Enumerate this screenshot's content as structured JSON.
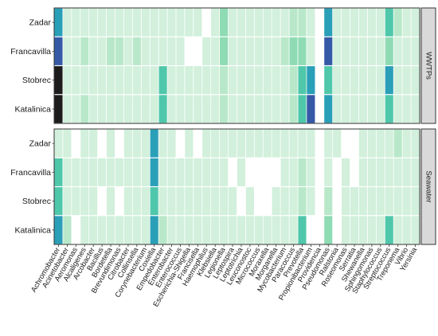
{
  "chart_data": {
    "type": "heatmap",
    "title": "",
    "xlabel": "",
    "ylabel": "",
    "color_scale": {
      "low": "#e8f7ec",
      "stops": [
        "#e8f7ec",
        "#d2f0dc",
        "#b8e8c9",
        "#8fdbb4",
        "#4fc7aa",
        "#2a9fb8",
        "#3559a6",
        "#1c1c1c"
      ],
      "missing": "#ffffff"
    },
    "genera": [
      "Achromobacter",
      "Acinetobacter",
      "Aeromonas",
      "Alcaligenes",
      "Arcobacter",
      "Bacillus",
      "Bordetella",
      "Brevundimonas",
      "Citrobacter",
      "Collinsella",
      "Corynebacterium",
      "Coxiella",
      "Empedobacter",
      "Enterobacter",
      "Enterococcus",
      "Escherichia-Shigella",
      "Francisella",
      "Haemophilus",
      "Klebsiella",
      "Legionella",
      "Leptospira",
      "Leptotrichia",
      "Leuconostoc",
      "Micrococcus",
      "Moraxella",
      "Morganella",
      "Mycobacterium",
      "Paracoccus",
      "Prevotella",
      "Propionibacterium",
      "Providencia",
      "Pseudomonas",
      "Ralstonia",
      "Roseomonas",
      "Serratia",
      "Shewanella",
      "Sphingomonas",
      "Staphylococcus",
      "Streptococcus",
      "Treponema",
      "Vibrio",
      "Yersinia"
    ],
    "panels": [
      {
        "strip": "WWTPs",
        "rows": [
          {
            "site": "Zadar",
            "values": [
              5,
              1,
              1,
              1,
              1,
              1,
              1,
              1,
              1,
              1,
              1,
              1,
              1,
              1,
              1,
              1,
              1,
              0,
              1,
              3,
              1,
              1,
              1,
              1,
              1,
              1,
              1,
              2,
              2,
              1,
              0,
              5,
              1,
              1,
              1,
              1,
              1,
              1,
              4,
              2,
              1,
              1
            ]
          },
          {
            "site": "Francavilla",
            "values": [
              6,
              1,
              1,
              2,
              1,
              1,
              2,
              2,
              1,
              2,
              1,
              1,
              1,
              1,
              1,
              0,
              0,
              1,
              1,
              3,
              1,
              1,
              1,
              1,
              1,
              1,
              2,
              3,
              3,
              1,
              0,
              6,
              1,
              1,
              1,
              1,
              1,
              1,
              3,
              1,
              1,
              1
            ]
          },
          {
            "site": "Stobrec",
            "values": [
              7,
              1,
              1,
              1,
              1,
              1,
              1,
              1,
              1,
              1,
              1,
              1,
              4,
              1,
              1,
              1,
              1,
              1,
              1,
              2,
              1,
              1,
              1,
              1,
              1,
              1,
              1,
              2,
              4,
              5,
              0,
              4,
              1,
              1,
              1,
              1,
              1,
              1,
              5,
              1,
              1,
              1
            ]
          },
          {
            "site": "Katalinica",
            "values": [
              7,
              1,
              1,
              2,
              1,
              1,
              1,
              1,
              1,
              1,
              1,
              1,
              4,
              1,
              1,
              1,
              1,
              1,
              1,
              2,
              1,
              1,
              1,
              1,
              1,
              1,
              1,
              2,
              4,
              6,
              0,
              5,
              1,
              1,
              1,
              1,
              1,
              1,
              4,
              1,
              1,
              1
            ]
          }
        ]
      },
      {
        "strip": "Seawater",
        "rows": [
          {
            "site": "Zadar",
            "values": [
              1,
              1,
              0,
              1,
              1,
              0,
              1,
              0,
              1,
              1,
              1,
              5,
              1,
              1,
              0,
              1,
              0,
              1,
              1,
              1,
              1,
              1,
              1,
              1,
              1,
              1,
              1,
              1,
              1,
              1,
              0,
              1,
              1,
              0,
              0,
              1,
              1,
              1,
              1,
              2,
              1,
              1
            ]
          },
          {
            "site": "Francavilla",
            "values": [
              4,
              1,
              1,
              1,
              1,
              1,
              1,
              1,
              1,
              1,
              1,
              5,
              1,
              1,
              1,
              1,
              1,
              1,
              1,
              1,
              0,
              1,
              0,
              0,
              0,
              0,
              1,
              1,
              2,
              1,
              0,
              1,
              0,
              1,
              0,
              1,
              1,
              1,
              1,
              1,
              1,
              1
            ]
          },
          {
            "site": "Stobrec",
            "values": [
              4,
              1,
              1,
              1,
              1,
              0,
              1,
              0,
              1,
              1,
              1,
              4,
              1,
              1,
              1,
              1,
              1,
              1,
              1,
              1,
              1,
              0,
              1,
              0,
              0,
              1,
              1,
              1,
              2,
              1,
              0,
              2,
              0,
              1,
              1,
              1,
              1,
              1,
              1,
              1,
              1,
              1
            ]
          },
          {
            "site": "Katalinica",
            "values": [
              5,
              2,
              0,
              1,
              1,
              1,
              1,
              1,
              1,
              1,
              1,
              5,
              2,
              1,
              1,
              1,
              1,
              1,
              1,
              1,
              1,
              1,
              1,
              1,
              1,
              1,
              1,
              1,
              4,
              0,
              0,
              3,
              0,
              1,
              1,
              1,
              1,
              1,
              4,
              1,
              1,
              1
            ]
          }
        ]
      }
    ]
  }
}
